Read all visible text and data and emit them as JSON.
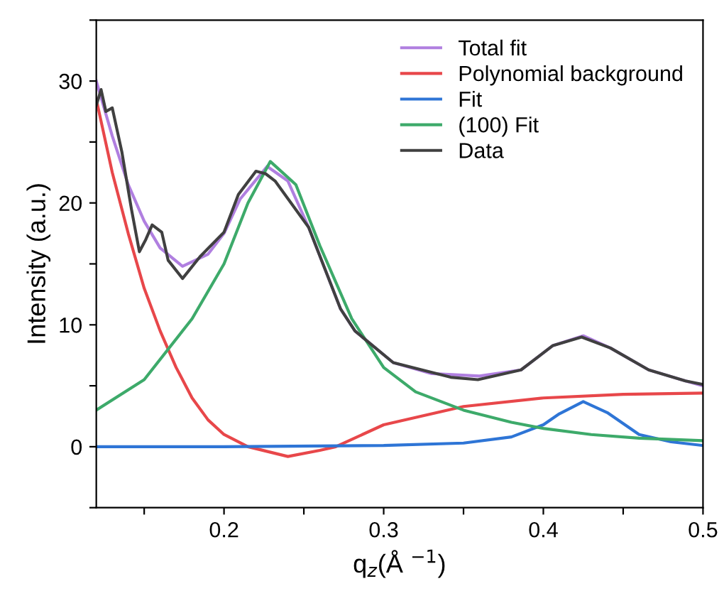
{
  "chart_data": {
    "type": "line",
    "xlabel": "q$_{z}$(Å $^{−1}$)",
    "ylabel": "Intensity (a.u.)",
    "xlim": [
      0.12,
      0.5
    ],
    "ylim": [
      -5,
      35
    ],
    "xticks": [
      {
        "value": 0.15,
        "label": null
      },
      0.2,
      {
        "value": 0.25,
        "label": null
      },
      0.3,
      {
        "value": 0.35,
        "label": null
      },
      0.4,
      {
        "value": 0.45,
        "label": null
      },
      0.5
    ],
    "yticks": [
      {
        "value": -5,
        "label": null
      },
      0,
      {
        "value": 5,
        "label": null
      },
      10,
      {
        "value": 15,
        "label": null
      },
      20,
      {
        "value": 25,
        "label": null
      },
      30,
      {
        "value": 35,
        "label": null
      }
    ],
    "legend": "top right",
    "grid": false,
    "marker": "none",
    "line_style": "solid",
    "series": [
      {
        "name": "Total fit",
        "color": "#b07fe0",
        "x": [
          0.12,
          0.13,
          0.14,
          0.15,
          0.16,
          0.174,
          0.19,
          0.2,
          0.21,
          0.227,
          0.24,
          0.253,
          0.273,
          0.282,
          0.306,
          0.33,
          0.36,
          0.386,
          0.406,
          0.425,
          0.442,
          0.466,
          0.489,
          0.5
        ],
        "values": [
          30,
          25.5,
          21.5,
          18.5,
          16.3,
          14.8,
          15.8,
          17.5,
          20.3,
          23.0,
          21.8,
          18.0,
          11.3,
          9.5,
          6.9,
          6.0,
          5.8,
          6.3,
          8.3,
          9.1,
          8.1,
          6.3,
          5.4,
          5.0
        ]
      },
      {
        "name": "Polynomial background",
        "color": "#e8474a",
        "x": [
          0.12,
          0.13,
          0.14,
          0.15,
          0.16,
          0.17,
          0.18,
          0.19,
          0.2,
          0.215,
          0.24,
          0.26,
          0.27,
          0.3,
          0.35,
          0.4,
          0.45,
          0.5
        ],
        "values": [
          28.5,
          22.5,
          17.5,
          13,
          9.5,
          6.5,
          4,
          2.2,
          1,
          0,
          -0.8,
          -0.3,
          0,
          1.8,
          3.3,
          4.0,
          4.3,
          4.4
        ]
      },
      {
        "name": "Fit",
        "color": "#2e75d6",
        "x": [
          0.12,
          0.2,
          0.3,
          0.35,
          0.38,
          0.4,
          0.41,
          0.425,
          0.44,
          0.46,
          0.48,
          0.5
        ],
        "values": [
          0,
          0,
          0.1,
          0.3,
          0.8,
          1.8,
          2.7,
          3.7,
          2.8,
          1.0,
          0.4,
          0.1
        ]
      },
      {
        "name": "(100) Fit",
        "color": "#3daa6a",
        "x": [
          0.12,
          0.15,
          0.18,
          0.2,
          0.215,
          0.229,
          0.245,
          0.26,
          0.28,
          0.3,
          0.32,
          0.35,
          0.38,
          0.4,
          0.43,
          0.46,
          0.5
        ],
        "values": [
          3.0,
          5.5,
          10.5,
          15,
          20,
          23.4,
          21.5,
          16.5,
          10.5,
          6.5,
          4.5,
          3.0,
          2.0,
          1.5,
          1.0,
          0.7,
          0.5
        ]
      },
      {
        "name": "Data",
        "color": "#404040",
        "x": [
          0.12,
          0.123,
          0.126,
          0.13,
          0.136,
          0.142,
          0.147,
          0.151,
          0.155,
          0.161,
          0.165,
          0.174,
          0.185,
          0.2,
          0.209,
          0.22,
          0.226,
          0.232,
          0.253,
          0.273,
          0.282,
          0.306,
          0.342,
          0.359,
          0.386,
          0.406,
          0.424,
          0.442,
          0.466,
          0.489,
          0.5
        ],
        "values": [
          28.0,
          29.3,
          27.5,
          27.8,
          24.2,
          19.5,
          16.0,
          17.0,
          18.2,
          17.6,
          15.3,
          13.8,
          15.6,
          17.6,
          20.7,
          22.6,
          22.4,
          21.8,
          18.0,
          11.3,
          9.5,
          6.9,
          5.7,
          5.5,
          6.3,
          8.3,
          9.0,
          8.1,
          6.3,
          5.4,
          5.1
        ]
      }
    ]
  }
}
